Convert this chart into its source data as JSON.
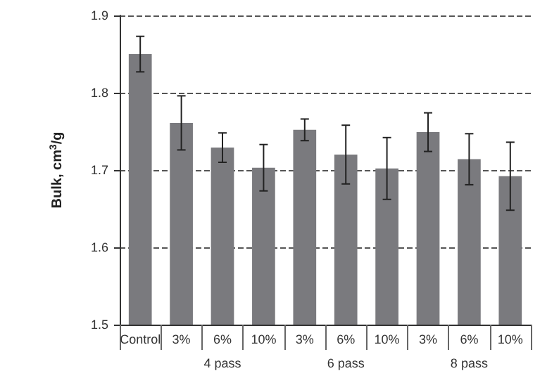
{
  "chart_data": {
    "type": "bar",
    "ylabel": "Bulk, cm$^{3}$/g",
    "categories": [
      "Control",
      "3%",
      "6%",
      "10%",
      "3%",
      "6%",
      "10%",
      "3%",
      "6%",
      "10%"
    ],
    "values": [
      1.85,
      1.761,
      1.729,
      1.703,
      1.752,
      1.72,
      1.702,
      1.749,
      1.714,
      1.692
    ],
    "errors": [
      0.023,
      0.035,
      0.019,
      0.03,
      0.014,
      0.038,
      0.04,
      0.025,
      0.033,
      0.044
    ],
    "color": "#7a7a7e",
    "ylim": [
      1.5,
      1.9
    ],
    "yticks": [
      1.5,
      1.6,
      1.7,
      1.8,
      1.9
    ],
    "grid": "y",
    "annotations": [
      "4 pass",
      "6 pass",
      "8 pass"
    ]
  }
}
